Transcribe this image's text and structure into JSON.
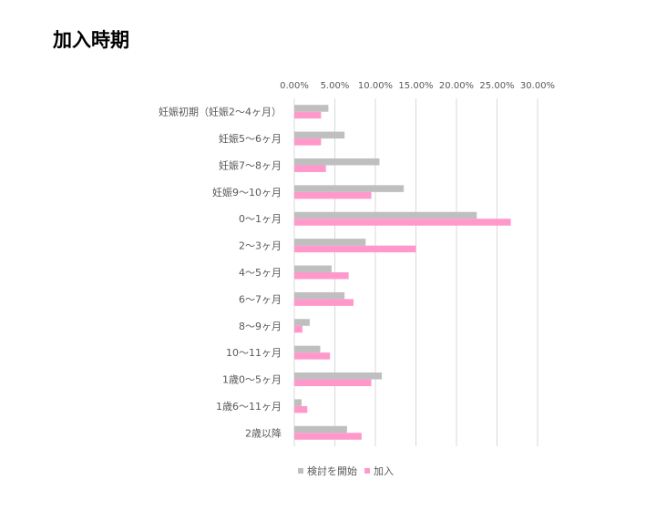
{
  "title": "加入時期",
  "chart_data": {
    "type": "bar",
    "orientation": "horizontal",
    "categories": [
      "妊娠初期（妊娠2〜4ヶ月）",
      "妊娠5〜6ヶ月",
      "妊娠7〜8ヶ月",
      "妊娠9〜10ヶ月",
      "0〜1ヶ月",
      "2〜3ヶ月",
      "4〜5ヶ月",
      "6〜7ヶ月",
      "8〜9ヶ月",
      "10〜11ヶ月",
      "1歳0〜5ヶ月",
      "1歳6〜11ヶ月",
      "2歳以降"
    ],
    "series": [
      {
        "name": "検討を開始",
        "color": "#BFBFBF",
        "values": [
          4.2,
          6.2,
          10.5,
          13.5,
          22.5,
          8.8,
          4.6,
          6.2,
          1.9,
          3.2,
          10.8,
          0.9,
          6.5
        ]
      },
      {
        "name": "加入",
        "color": "#FF99CC",
        "values": [
          3.3,
          3.3,
          3.9,
          9.5,
          26.7,
          15.0,
          6.7,
          7.3,
          1.0,
          4.4,
          9.5,
          1.6,
          8.3
        ]
      }
    ],
    "xlim": [
      0,
      30
    ],
    "xticks": [
      "0.00%",
      "5.00%",
      "10.00%",
      "15.00%",
      "20.00%",
      "25.00%",
      "30.00%"
    ],
    "grid": true,
    "legend_position": "bottom"
  }
}
